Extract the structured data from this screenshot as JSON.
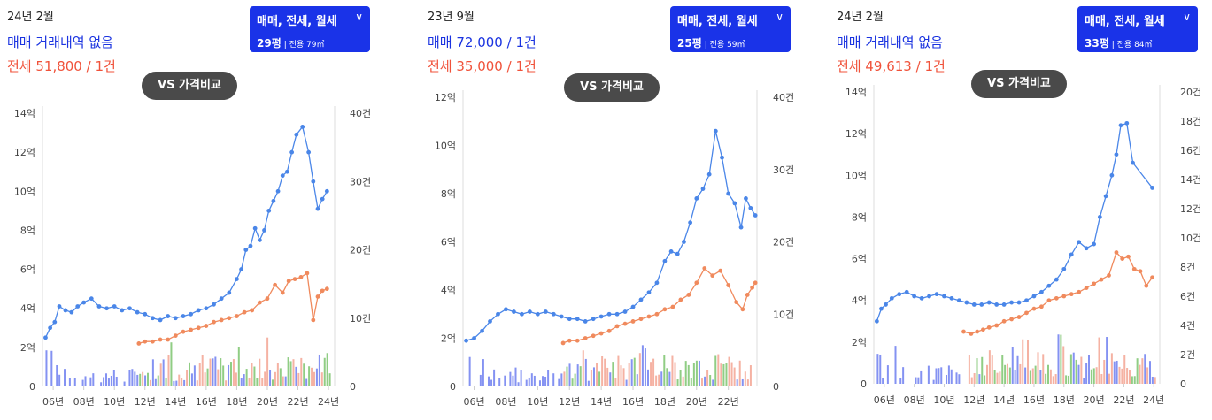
{
  "panels": [
    {
      "date": "24년 2월",
      "sale": "매매 거래내역 없음",
      "jeonse": "전세 51,800 / 1건",
      "selector": {
        "types": "매매, 전세, 월세",
        "size": "29평",
        "area": "전용 79㎡"
      },
      "compare": "VS 가격비교"
    },
    {
      "date": "23년 9월",
      "sale": "매매 72,000 / 1건",
      "jeonse": "전세 35,000 / 1건",
      "selector": {
        "types": "매매, 전세, 월세",
        "size": "25평",
        "area": "전용 59㎡"
      },
      "compare": "VS 가격비교"
    },
    {
      "date": "24년 2월",
      "sale": "매매 거래내역 없음",
      "jeonse": "전세 49,613 / 1건",
      "selector": {
        "types": "매매, 전세, 월세",
        "size": "33평",
        "area": "전용 84㎡"
      },
      "compare": "VS 가격비교"
    }
  ],
  "chart_data": [
    {
      "type": "line",
      "y_ticks": [
        "0",
        "2억",
        "4억",
        "6억",
        "8억",
        "10억",
        "12억",
        "14억"
      ],
      "ylim": [
        0,
        14
      ],
      "y2_ticks": [
        "0",
        "10건",
        "20건",
        "30건",
        "40건"
      ],
      "y2lim": [
        0,
        40
      ],
      "x_ticks": [
        "06년",
        "08년",
        "10년",
        "12년",
        "14년",
        "16년",
        "18년",
        "20년",
        "22년",
        "24년"
      ],
      "xlim": [
        2005.3,
        2024.4
      ],
      "series": [
        {
          "kind": "sale",
          "color": "#4a86e8",
          "points": [
            [
              2005.5,
              2.5
            ],
            [
              2005.8,
              3.0
            ],
            [
              2006.1,
              3.3
            ],
            [
              2006.4,
              4.1
            ],
            [
              2006.8,
              3.9
            ],
            [
              2007.2,
              3.8
            ],
            [
              2007.6,
              4.1
            ],
            [
              2008.0,
              4.3
            ],
            [
              2008.5,
              4.5
            ],
            [
              2009.0,
              4.1
            ],
            [
              2009.5,
              4.0
            ],
            [
              2010.0,
              4.1
            ],
            [
              2010.5,
              3.9
            ],
            [
              2011.0,
              4.0
            ],
            [
              2011.5,
              3.8
            ],
            [
              2012.0,
              3.7
            ],
            [
              2012.5,
              3.5
            ],
            [
              2013.0,
              3.4
            ],
            [
              2013.5,
              3.6
            ],
            [
              2014.0,
              3.5
            ],
            [
              2014.5,
              3.6
            ],
            [
              2015.0,
              3.7
            ],
            [
              2015.5,
              3.9
            ],
            [
              2016.0,
              4.0
            ],
            [
              2016.5,
              4.2
            ],
            [
              2017.0,
              4.5
            ],
            [
              2017.5,
              4.8
            ],
            [
              2018.0,
              5.5
            ],
            [
              2018.3,
              6.0
            ],
            [
              2018.6,
              7.0
            ],
            [
              2018.9,
              7.2
            ],
            [
              2019.2,
              8.1
            ],
            [
              2019.5,
              7.5
            ],
            [
              2019.8,
              8.0
            ],
            [
              2020.1,
              9.0
            ],
            [
              2020.4,
              9.5
            ],
            [
              2020.7,
              10.0
            ],
            [
              2021.0,
              10.8
            ],
            [
              2021.3,
              11.0
            ],
            [
              2021.6,
              12.0
            ],
            [
              2021.9,
              12.9
            ],
            [
              2022.3,
              13.3
            ],
            [
              2022.7,
              12.0
            ],
            [
              2023.0,
              10.5
            ],
            [
              2023.3,
              9.1
            ],
            [
              2023.6,
              9.6
            ],
            [
              2023.9,
              10.0
            ]
          ]
        },
        {
          "kind": "jeonse",
          "color": "#f08a5d",
          "points": [
            [
              2011.6,
              2.2
            ],
            [
              2012.0,
              2.3
            ],
            [
              2012.5,
              2.3
            ],
            [
              2013.0,
              2.4
            ],
            [
              2013.5,
              2.4
            ],
            [
              2014.0,
              2.6
            ],
            [
              2014.5,
              2.8
            ],
            [
              2015.0,
              2.9
            ],
            [
              2015.5,
              3.0
            ],
            [
              2016.0,
              3.1
            ],
            [
              2016.5,
              3.3
            ],
            [
              2017.0,
              3.4
            ],
            [
              2017.5,
              3.5
            ],
            [
              2018.0,
              3.6
            ],
            [
              2018.5,
              3.8
            ],
            [
              2019.0,
              3.9
            ],
            [
              2019.5,
              4.3
            ],
            [
              2020.0,
              4.5
            ],
            [
              2020.5,
              5.2
            ],
            [
              2021.0,
              4.8
            ],
            [
              2021.4,
              5.4
            ],
            [
              2021.8,
              5.5
            ],
            [
              2022.2,
              5.6
            ],
            [
              2022.6,
              5.8
            ],
            [
              2023.0,
              3.4
            ],
            [
              2023.3,
              4.6
            ],
            [
              2023.6,
              4.9
            ],
            [
              2023.9,
              5.0
            ]
          ]
        }
      ]
    },
    {
      "type": "line",
      "y_ticks": [
        "0",
        "2억",
        "4억",
        "6억",
        "8억",
        "10억",
        "12억"
      ],
      "ylim": [
        0,
        12
      ],
      "y2_ticks": [
        "0",
        "10건",
        "20건",
        "30건",
        "40건"
      ],
      "y2lim": [
        0,
        40
      ],
      "x_ticks": [
        "06년",
        "08년",
        "10년",
        "12년",
        "14년",
        "16년",
        "18년",
        "20년",
        "22년"
      ],
      "xlim": [
        2005.3,
        2023.8
      ],
      "series": [
        {
          "kind": "sale",
          "color": "#4a86e8",
          "points": [
            [
              2005.5,
              1.9
            ],
            [
              2006.0,
              2.0
            ],
            [
              2006.5,
              2.3
            ],
            [
              2007.0,
              2.7
            ],
            [
              2007.5,
              3.0
            ],
            [
              2008.0,
              3.2
            ],
            [
              2008.5,
              3.1
            ],
            [
              2009.0,
              3.0
            ],
            [
              2009.5,
              3.1
            ],
            [
              2010.0,
              3.0
            ],
            [
              2010.5,
              3.1
            ],
            [
              2011.0,
              3.0
            ],
            [
              2011.5,
              2.9
            ],
            [
              2012.0,
              2.8
            ],
            [
              2012.5,
              2.8
            ],
            [
              2013.0,
              2.7
            ],
            [
              2013.5,
              2.8
            ],
            [
              2014.0,
              2.9
            ],
            [
              2014.5,
              3.0
            ],
            [
              2015.0,
              3.0
            ],
            [
              2015.5,
              3.1
            ],
            [
              2016.0,
              3.3
            ],
            [
              2016.5,
              3.6
            ],
            [
              2017.0,
              3.9
            ],
            [
              2017.5,
              4.3
            ],
            [
              2018.0,
              5.2
            ],
            [
              2018.4,
              5.6
            ],
            [
              2018.8,
              5.5
            ],
            [
              2019.2,
              6.0
            ],
            [
              2019.6,
              6.8
            ],
            [
              2020.0,
              7.8
            ],
            [
              2020.4,
              8.2
            ],
            [
              2020.8,
              8.8
            ],
            [
              2021.2,
              10.6
            ],
            [
              2021.6,
              9.5
            ],
            [
              2022.0,
              8.0
            ],
            [
              2022.4,
              7.6
            ],
            [
              2022.8,
              6.6
            ],
            [
              2023.1,
              7.8
            ],
            [
              2023.4,
              7.4
            ],
            [
              2023.7,
              7.1
            ]
          ]
        },
        {
          "kind": "jeonse",
          "color": "#f08a5d",
          "points": [
            [
              2011.6,
              1.8
            ],
            [
              2012.0,
              1.9
            ],
            [
              2012.5,
              1.9
            ],
            [
              2013.0,
              2.0
            ],
            [
              2013.5,
              2.1
            ],
            [
              2014.0,
              2.2
            ],
            [
              2014.5,
              2.3
            ],
            [
              2015.0,
              2.5
            ],
            [
              2015.5,
              2.6
            ],
            [
              2016.0,
              2.7
            ],
            [
              2016.5,
              2.8
            ],
            [
              2017.0,
              2.9
            ],
            [
              2017.5,
              3.0
            ],
            [
              2018.0,
              3.2
            ],
            [
              2018.5,
              3.3
            ],
            [
              2019.0,
              3.6
            ],
            [
              2019.5,
              3.8
            ],
            [
              2020.0,
              4.3
            ],
            [
              2020.5,
              4.9
            ],
            [
              2021.0,
              4.6
            ],
            [
              2021.5,
              4.8
            ],
            [
              2022.0,
              4.2
            ],
            [
              2022.5,
              3.5
            ],
            [
              2022.9,
              3.2
            ],
            [
              2023.2,
              3.8
            ],
            [
              2023.5,
              4.1
            ],
            [
              2023.7,
              4.3
            ]
          ]
        }
      ]
    },
    {
      "type": "line",
      "y_ticks": [
        "0",
        "2억",
        "4억",
        "6억",
        "8억",
        "10억",
        "12억",
        "14억"
      ],
      "ylim": [
        0,
        14
      ],
      "y2_ticks": [
        "0",
        "2건",
        "4건",
        "6건",
        "8건",
        "10건",
        "12건",
        "14건",
        "16건",
        "18건",
        "20건"
      ],
      "y2lim": [
        0,
        20
      ],
      "x_ticks": [
        "06년",
        "08년",
        "10년",
        "12년",
        "14년",
        "16년",
        "18년",
        "20년",
        "22년",
        "24년"
      ],
      "xlim": [
        2005.3,
        2024.4
      ],
      "series": [
        {
          "kind": "sale",
          "color": "#4a86e8",
          "points": [
            [
              2005.5,
              3.0
            ],
            [
              2005.8,
              3.6
            ],
            [
              2006.1,
              3.8
            ],
            [
              2006.5,
              4.1
            ],
            [
              2007.0,
              4.3
            ],
            [
              2007.5,
              4.4
            ],
            [
              2008.0,
              4.2
            ],
            [
              2008.5,
              4.1
            ],
            [
              2009.0,
              4.2
            ],
            [
              2009.5,
              4.3
            ],
            [
              2010.0,
              4.2
            ],
            [
              2010.5,
              4.1
            ],
            [
              2011.0,
              4.0
            ],
            [
              2011.5,
              3.9
            ],
            [
              2012.0,
              3.8
            ],
            [
              2012.5,
              3.8
            ],
            [
              2013.0,
              3.9
            ],
            [
              2013.5,
              3.8
            ],
            [
              2014.0,
              3.8
            ],
            [
              2014.5,
              3.9
            ],
            [
              2015.0,
              3.9
            ],
            [
              2015.5,
              4.0
            ],
            [
              2016.0,
              4.2
            ],
            [
              2016.5,
              4.4
            ],
            [
              2017.0,
              4.7
            ],
            [
              2017.5,
              5.0
            ],
            [
              2018.0,
              5.5
            ],
            [
              2018.5,
              6.2
            ],
            [
              2019.0,
              6.8
            ],
            [
              2019.5,
              6.5
            ],
            [
              2020.0,
              6.7
            ],
            [
              2020.4,
              8.0
            ],
            [
              2020.8,
              9.0
            ],
            [
              2021.2,
              10.0
            ],
            [
              2021.5,
              11.0
            ],
            [
              2021.8,
              12.4
            ],
            [
              2022.2,
              12.5
            ],
            [
              2022.6,
              10.6
            ],
            [
              2023.9,
              9.4
            ]
          ]
        },
        {
          "kind": "jeonse",
          "color": "#f08a5d",
          "points": [
            [
              2011.3,
              2.5
            ],
            [
              2011.8,
              2.4
            ],
            [
              2012.2,
              2.5
            ],
            [
              2012.6,
              2.6
            ],
            [
              2013.0,
              2.7
            ],
            [
              2013.5,
              2.8
            ],
            [
              2014.0,
              3.0
            ],
            [
              2014.5,
              3.1
            ],
            [
              2015.0,
              3.2
            ],
            [
              2015.5,
              3.4
            ],
            [
              2016.0,
              3.6
            ],
            [
              2016.5,
              3.7
            ],
            [
              2017.0,
              4.0
            ],
            [
              2017.5,
              4.1
            ],
            [
              2018.0,
              4.2
            ],
            [
              2018.5,
              4.3
            ],
            [
              2019.0,
              4.4
            ],
            [
              2019.5,
              4.6
            ],
            [
              2020.0,
              4.8
            ],
            [
              2020.5,
              5.0
            ],
            [
              2021.0,
              5.2
            ],
            [
              2021.5,
              6.3
            ],
            [
              2021.9,
              6.0
            ],
            [
              2022.3,
              6.1
            ],
            [
              2022.7,
              5.5
            ],
            [
              2023.1,
              5.4
            ],
            [
              2023.5,
              4.7
            ],
            [
              2023.9,
              5.1
            ]
          ]
        }
      ]
    }
  ]
}
